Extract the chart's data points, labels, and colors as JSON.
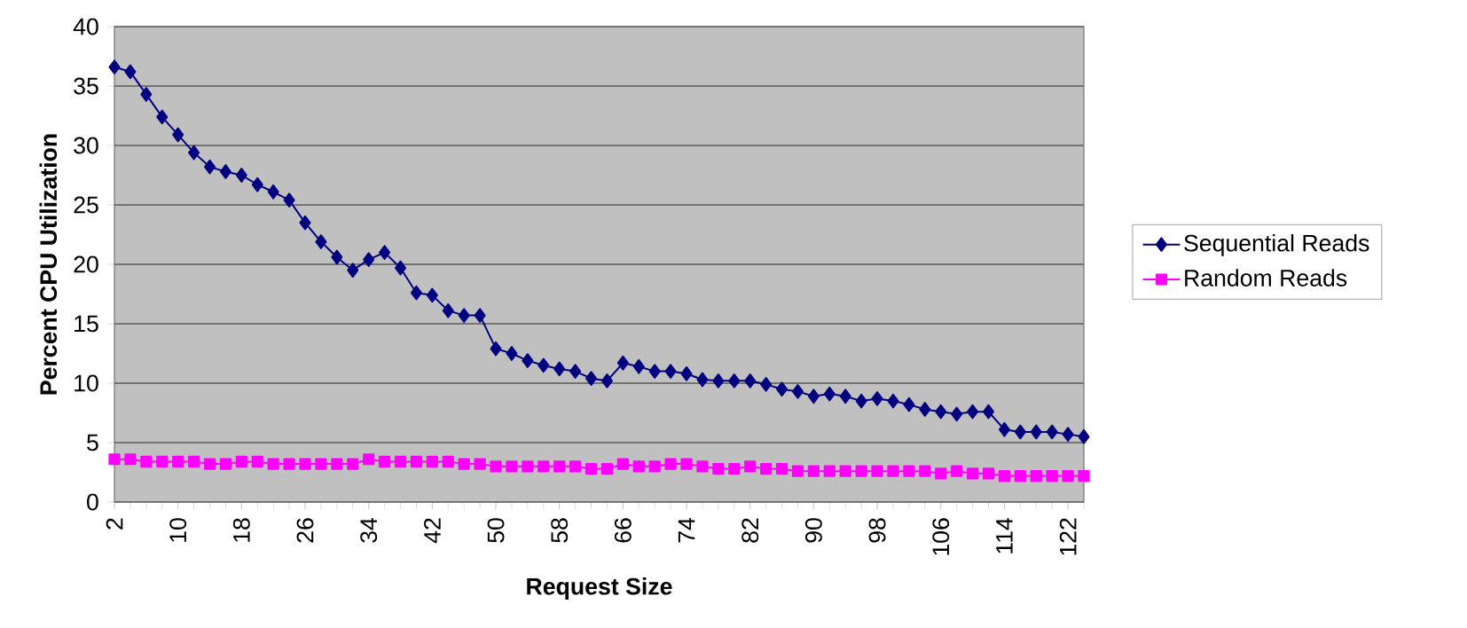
{
  "chart_data": {
    "type": "line",
    "xlabel": "Request Size",
    "ylabel": "Percent CPU Utilization",
    "x": [
      2,
      4,
      6,
      8,
      10,
      12,
      14,
      16,
      18,
      20,
      22,
      24,
      26,
      28,
      30,
      32,
      34,
      36,
      38,
      40,
      42,
      44,
      46,
      48,
      50,
      52,
      54,
      56,
      58,
      60,
      62,
      64,
      66,
      68,
      70,
      72,
      74,
      76,
      78,
      80,
      82,
      84,
      86,
      88,
      90,
      92,
      94,
      96,
      98,
      100,
      102,
      104,
      106,
      108,
      110,
      112,
      114,
      116,
      118,
      120,
      122,
      124
    ],
    "series": [
      {
        "name": "Sequential Reads",
        "color": "#000080",
        "marker": "diamond",
        "values": [
          36.6,
          36.2,
          34.3,
          32.4,
          30.9,
          29.4,
          28.2,
          27.8,
          27.5,
          26.7,
          26.1,
          25.4,
          23.5,
          21.9,
          20.6,
          19.5,
          20.4,
          21.0,
          19.7,
          17.6,
          17.4,
          16.1,
          15.7,
          15.7,
          12.9,
          12.5,
          11.9,
          11.5,
          11.2,
          11.0,
          10.4,
          10.2,
          11.7,
          11.4,
          11.0,
          11.0,
          10.8,
          10.3,
          10.2,
          10.2,
          10.2,
          9.9,
          9.5,
          9.3,
          8.9,
          9.1,
          8.9,
          8.5,
          8.7,
          8.5,
          8.2,
          7.8,
          7.6,
          7.4,
          7.6,
          7.6,
          6.1,
          5.9,
          5.9,
          5.9,
          5.7,
          5.5
        ]
      },
      {
        "name": "Random Reads",
        "color": "#ff00ff",
        "marker": "square",
        "values": [
          3.6,
          3.6,
          3.4,
          3.4,
          3.4,
          3.4,
          3.2,
          3.2,
          3.4,
          3.4,
          3.2,
          3.2,
          3.2,
          3.2,
          3.2,
          3.2,
          3.6,
          3.4,
          3.4,
          3.4,
          3.4,
          3.4,
          3.2,
          3.2,
          3.0,
          3.0,
          3.0,
          3.0,
          3.0,
          3.0,
          2.8,
          2.8,
          3.2,
          3.0,
          3.0,
          3.2,
          3.2,
          3.0,
          2.8,
          2.8,
          3.0,
          2.8,
          2.8,
          2.6,
          2.6,
          2.6,
          2.6,
          2.6,
          2.6,
          2.6,
          2.6,
          2.6,
          2.4,
          2.6,
          2.4,
          2.4,
          2.2,
          2.2,
          2.2,
          2.2,
          2.2,
          2.2
        ]
      }
    ],
    "xlim": [
      2,
      124
    ],
    "xticks": [
      2,
      10,
      18,
      26,
      34,
      42,
      50,
      58,
      66,
      74,
      82,
      90,
      98,
      106,
      114,
      122
    ],
    "ylim": [
      0,
      40
    ],
    "yticks": [
      0,
      5,
      10,
      15,
      20,
      25,
      30,
      35,
      40
    ],
    "grid": "y",
    "legend": "right",
    "line_style": "solid"
  }
}
